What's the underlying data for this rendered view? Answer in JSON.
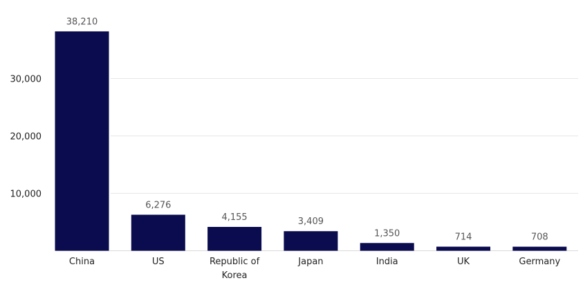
{
  "chart_data": {
    "type": "bar",
    "title": "",
    "xlabel": "",
    "ylabel": "",
    "categories": [
      [
        "China"
      ],
      [
        "US"
      ],
      [
        "Republic of",
        "Korea"
      ],
      [
        "Japan"
      ],
      [
        "India"
      ],
      [
        "UK"
      ],
      [
        "Germany"
      ]
    ],
    "values": [
      38210,
      6276,
      4155,
      3409,
      1350,
      714,
      708
    ],
    "value_labels": [
      "38,210",
      "6,276",
      "4,155",
      "3,409",
      "1,350",
      "714",
      "708"
    ],
    "ylim": [
      0,
      40000
    ],
    "yticks": [
      10000,
      20000,
      30000
    ],
    "ytick_labels": [
      "10,000",
      "20,000",
      "30,000"
    ],
    "grid": true,
    "legend": "none",
    "bar_color": "#0b0b4f"
  }
}
